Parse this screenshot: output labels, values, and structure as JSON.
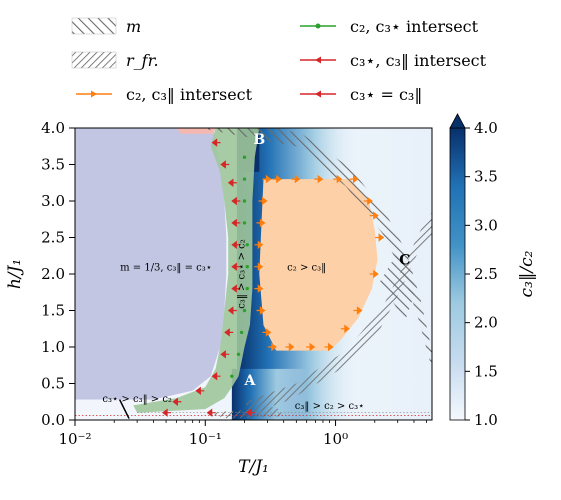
{
  "chart_data": {
    "type": "heatmap",
    "x_scale": "log",
    "xlim": [
      0.01,
      5.5
    ],
    "ylim": [
      0.0,
      4.0
    ],
    "xlabel": "T/J₁",
    "ylabel": "h/J₁",
    "x_ticks": [
      {
        "value": 0.01,
        "label": "10⁻²"
      },
      {
        "value": 0.1,
        "label": "10⁻¹"
      },
      {
        "value": 1,
        "label": "10⁰"
      }
    ],
    "y_ticks": [
      {
        "value": 0.0,
        "label": "0.0"
      },
      {
        "value": 0.5,
        "label": "0.5"
      },
      {
        "value": 1.0,
        "label": "1.0"
      },
      {
        "value": 1.5,
        "label": "1.5"
      },
      {
        "value": 2.0,
        "label": "2.0"
      },
      {
        "value": 2.5,
        "label": "2.5"
      },
      {
        "value": 3.0,
        "label": "3.0"
      },
      {
        "value": 3.5,
        "label": "3.5"
      },
      {
        "value": 4.0,
        "label": "4.0"
      }
    ],
    "colorbar": {
      "label": "c₃‖/c₂",
      "range": [
        1.0,
        4.0
      ],
      "ticks": [
        "1.0",
        "1.5",
        "2.0",
        "2.5",
        "3.0",
        "3.5",
        "4.0"
      ],
      "color_low": "#f4f8fd",
      "color_high": "#08306b"
    },
    "legend": [
      {
        "key": "m",
        "label": "m",
        "kind": "hatch-sparse"
      },
      {
        "key": "rfr",
        "label": "r_fr.",
        "kind": "hatch-dense"
      },
      {
        "key": "c2c3par",
        "label": "c₂, c₃‖ intersect",
        "kind": "line",
        "color": "#ff7f0e"
      },
      {
        "key": "c2c3star",
        "label": "c₂, c₃⋆ intersect",
        "kind": "line",
        "color": "#2ca02c"
      },
      {
        "key": "c3starc3par",
        "label": "c₃⋆, c₃‖ intersect",
        "kind": "line",
        "color": "#d62728"
      },
      {
        "key": "c3stareq",
        "label": "c₃⋆ = c₃‖",
        "kind": "line",
        "color": "#d62728"
      }
    ],
    "region_labels": [
      {
        "text": "m = 1/3, c₃‖ = c₃⋆",
        "x": 0.05,
        "y": 2.05
      },
      {
        "text": "c₂ > c₃‖",
        "x": 0.6,
        "y": 2.05
      },
      {
        "text": "c₃⋆ > c₃‖ > c₂",
        "x": 0.03,
        "y": 0.25
      },
      {
        "text": "c₃‖ > c₂ > c₃⋆",
        "x": 0.9,
        "y": 0.15
      },
      {
        "text": "c₃‖ > c₃⋆ > c₂",
        "x": 0.2,
        "y": 2.0
      }
    ],
    "points": [
      {
        "name": "A",
        "x": 0.22,
        "y": 0.55
      },
      {
        "name": "B",
        "x": 0.26,
        "y": 3.85
      },
      {
        "name": "C",
        "x": 3.4,
        "y": 2.2
      }
    ],
    "orange_markers": [
      [
        0.3,
        3.3
      ],
      [
        0.36,
        3.3
      ],
      [
        0.5,
        3.3
      ],
      [
        0.75,
        3.3
      ],
      [
        1.05,
        3.3
      ],
      [
        1.4,
        3.3
      ],
      [
        1.8,
        3.0
      ],
      [
        0.28,
        3.0
      ],
      [
        0.27,
        2.7
      ],
      [
        0.26,
        2.4
      ],
      [
        0.26,
        2.1
      ],
      [
        0.26,
        1.8
      ],
      [
        0.27,
        1.5
      ],
      [
        0.3,
        1.2
      ],
      [
        0.33,
        1.0
      ],
      [
        0.45,
        1.0
      ],
      [
        0.65,
        1.0
      ],
      [
        0.9,
        1.0
      ],
      [
        1.2,
        1.25
      ],
      [
        1.5,
        1.5
      ],
      [
        2.0,
        2.0
      ],
      [
        2.2,
        2.5
      ],
      [
        2.0,
        2.8
      ]
    ],
    "green_markers": [
      [
        0.2,
        3.6
      ],
      [
        0.2,
        3.3
      ],
      [
        0.2,
        3.0
      ],
      [
        0.2,
        2.7
      ],
      [
        0.21,
        2.4
      ],
      [
        0.21,
        2.1
      ],
      [
        0.21,
        1.8
      ],
      [
        0.2,
        1.5
      ],
      [
        0.19,
        1.2
      ],
      [
        0.18,
        0.9
      ],
      [
        0.16,
        0.6
      ]
    ],
    "red_markers": [
      [
        0.12,
        3.8
      ],
      [
        0.14,
        3.5
      ],
      [
        0.16,
        3.25
      ],
      [
        0.17,
        3.0
      ],
      [
        0.17,
        2.7
      ],
      [
        0.17,
        2.4
      ],
      [
        0.17,
        2.1
      ],
      [
        0.17,
        1.8
      ],
      [
        0.16,
        1.5
      ],
      [
        0.15,
        1.2
      ],
      [
        0.14,
        0.9
      ],
      [
        0.12,
        0.6
      ],
      [
        0.09,
        0.4
      ],
      [
        0.06,
        0.25
      ],
      [
        0.05,
        0.1
      ],
      [
        0.11,
        0.1
      ],
      [
        0.22,
        0.1
      ]
    ],
    "green_band": [
      [
        0.12,
        4.0
      ],
      [
        0.26,
        4.0
      ],
      [
        0.24,
        3.6
      ],
      [
        0.23,
        3.0
      ],
      [
        0.23,
        2.4
      ],
      [
        0.23,
        1.8
      ],
      [
        0.22,
        1.3
      ],
      [
        0.2,
        1.0
      ],
      [
        0.19,
        0.8
      ],
      [
        0.18,
        0.6
      ],
      [
        0.16,
        0.45
      ],
      [
        0.14,
        0.3
      ],
      [
        0.1,
        0.15
      ],
      [
        0.03,
        0.1
      ],
      [
        0.028,
        0.2
      ],
      [
        0.06,
        0.3
      ],
      [
        0.1,
        0.45
      ],
      [
        0.12,
        0.7
      ],
      [
        0.13,
        1.0
      ],
      [
        0.14,
        1.5
      ],
      [
        0.15,
        2.0
      ],
      [
        0.15,
        2.5
      ],
      [
        0.14,
        3.0
      ],
      [
        0.13,
        3.4
      ],
      [
        0.11,
        3.75
      ]
    ],
    "orange_region": [
      [
        0.28,
        3.3
      ],
      [
        1.3,
        3.3
      ],
      [
        1.8,
        3.0
      ],
      [
        2.0,
        2.6
      ],
      [
        2.1,
        2.2
      ],
      [
        1.9,
        1.8
      ],
      [
        1.5,
        1.4
      ],
      [
        1.1,
        1.1
      ],
      [
        0.9,
        0.95
      ],
      [
        0.35,
        0.95
      ],
      [
        0.28,
        1.3
      ],
      [
        0.26,
        2.0
      ],
      [
        0.27,
        2.7
      ]
    ],
    "lavender_region": [
      [
        0.01,
        4.0
      ],
      [
        0.115,
        4.0
      ],
      [
        0.13,
        3.5
      ],
      [
        0.14,
        3.0
      ],
      [
        0.145,
        2.5
      ],
      [
        0.145,
        2.0
      ],
      [
        0.14,
        1.5
      ],
      [
        0.13,
        1.0
      ],
      [
        0.11,
        0.6
      ],
      [
        0.08,
        0.4
      ],
      [
        0.04,
        0.28
      ],
      [
        0.01,
        0.28
      ]
    ]
  }
}
